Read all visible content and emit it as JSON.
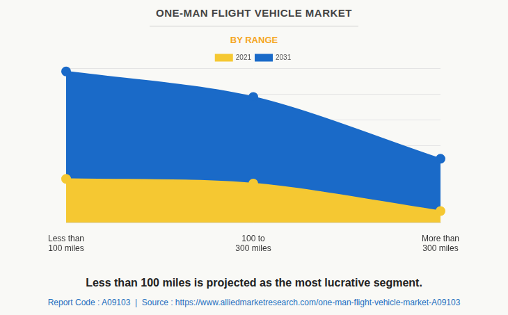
{
  "chart_data": {
    "type": "area",
    "title": "ONE-MAN FLIGHT VEHICLE MARKET",
    "subtitle": "BY RANGE",
    "annotations": [
      "Less than 100 miles is projected as the most lucrative segment.",
      "Report Code : A09103  |  Source : https://www.alliedmarketresearch.com/one-man-flight-vehicle-market-A09103"
    ],
    "categories": [
      "Less than 100 miles",
      "100 to 300 miles",
      "More than 300 miles"
    ],
    "series": [
      {
        "name": "2021",
        "color": "#f5c832",
        "values": [
          1.7,
          1.52,
          0.45
        ]
      },
      {
        "name": "2031",
        "color": "#1a6ac8",
        "values": [
          5.87,
          4.88,
          2.48
        ]
      }
    ],
    "ylim": [
      0,
      6
    ],
    "yticks": [
      0,
      1,
      2,
      3,
      4,
      5,
      6
    ],
    "grid": true,
    "legend": "top",
    "tick_labels": "x",
    "marker": "circle"
  }
}
